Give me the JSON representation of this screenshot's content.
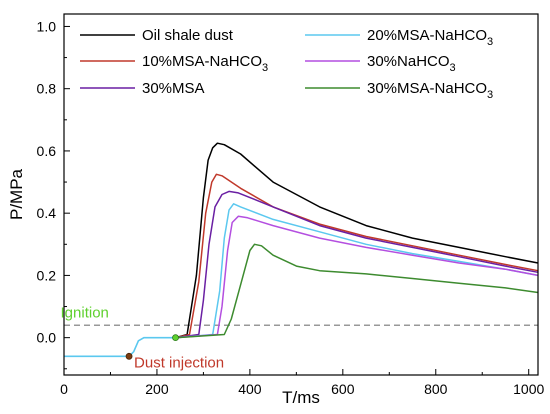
{
  "chart_data": {
    "type": "line",
    "xlabel": "T/ms",
    "ylabel": "P/MPa",
    "xlim": [
      0,
      1020
    ],
    "ylim": [
      -0.12,
      1.04
    ],
    "x_ticks": [
      0,
      200,
      400,
      600,
      800,
      1000
    ],
    "y_ticks": [
      0.0,
      0.2,
      0.4,
      0.6,
      0.8,
      1.0
    ],
    "x_tick_labels": [
      "0",
      "200",
      "400",
      "600",
      "800",
      "1000"
    ],
    "y_tick_labels": [
      "0.0",
      "0.2",
      "0.4",
      "0.6",
      "0.8",
      "1.0"
    ],
    "grid": false,
    "legend_position": "top",
    "series": [
      {
        "name": "Oil shale dust",
        "color": "#000000",
        "points": [
          [
            240,
            0.0
          ],
          [
            265,
            0.01
          ],
          [
            285,
            0.2
          ],
          [
            300,
            0.45
          ],
          [
            310,
            0.57
          ],
          [
            320,
            0.61
          ],
          [
            330,
            0.625
          ],
          [
            345,
            0.62
          ],
          [
            380,
            0.59
          ],
          [
            450,
            0.5
          ],
          [
            550,
            0.42
          ],
          [
            650,
            0.36
          ],
          [
            750,
            0.32
          ],
          [
            850,
            0.29
          ],
          [
            950,
            0.26
          ],
          [
            1020,
            0.24
          ]
        ]
      },
      {
        "name": "10%MSA-NaHCO",
        "sub": "3",
        "color": "#c0392b",
        "points": [
          [
            240,
            0.0
          ],
          [
            270,
            0.01
          ],
          [
            290,
            0.18
          ],
          [
            305,
            0.4
          ],
          [
            318,
            0.5
          ],
          [
            328,
            0.525
          ],
          [
            340,
            0.52
          ],
          [
            380,
            0.48
          ],
          [
            450,
            0.42
          ],
          [
            550,
            0.365
          ],
          [
            650,
            0.325
          ],
          [
            750,
            0.295
          ],
          [
            850,
            0.265
          ],
          [
            950,
            0.235
          ],
          [
            1020,
            0.215
          ]
        ]
      },
      {
        "name": "30%MSA",
        "color": "#6a1fa3",
        "points": [
          [
            240,
            0.0
          ],
          [
            290,
            0.01
          ],
          [
            300,
            0.12
          ],
          [
            312,
            0.3
          ],
          [
            325,
            0.42
          ],
          [
            340,
            0.46
          ],
          [
            355,
            0.47
          ],
          [
            375,
            0.465
          ],
          [
            450,
            0.42
          ],
          [
            550,
            0.36
          ],
          [
            650,
            0.32
          ],
          [
            750,
            0.29
          ],
          [
            850,
            0.26
          ],
          [
            950,
            0.23
          ],
          [
            1020,
            0.21
          ]
        ]
      },
      {
        "name": "20%MSA-NaHCO",
        "sub": "3",
        "color": "#5bc8ef",
        "points": [
          [
            240,
            0.0
          ],
          [
            320,
            0.01
          ],
          [
            335,
            0.15
          ],
          [
            345,
            0.32
          ],
          [
            355,
            0.41
          ],
          [
            365,
            0.43
          ],
          [
            380,
            0.42
          ],
          [
            450,
            0.38
          ],
          [
            550,
            0.34
          ],
          [
            650,
            0.3
          ],
          [
            750,
            0.27
          ],
          [
            850,
            0.245
          ],
          [
            950,
            0.22
          ],
          [
            1020,
            0.2
          ]
        ]
      },
      {
        "name": "30%NaHCO",
        "sub": "3",
        "color": "#b44fe0",
        "points": [
          [
            240,
            0.0
          ],
          [
            330,
            0.01
          ],
          [
            340,
            0.1
          ],
          [
            352,
            0.28
          ],
          [
            362,
            0.37
          ],
          [
            375,
            0.39
          ],
          [
            395,
            0.385
          ],
          [
            450,
            0.36
          ],
          [
            550,
            0.32
          ],
          [
            650,
            0.29
          ],
          [
            750,
            0.265
          ],
          [
            850,
            0.24
          ],
          [
            950,
            0.22
          ],
          [
            1020,
            0.2
          ]
        ]
      },
      {
        "name": "30%MSA-NaHCO",
        "sub": "3",
        "color": "#3d8b2f",
        "points": [
          [
            240,
            0.0
          ],
          [
            345,
            0.01
          ],
          [
            360,
            0.06
          ],
          [
            380,
            0.17
          ],
          [
            400,
            0.28
          ],
          [
            410,
            0.3
          ],
          [
            425,
            0.295
          ],
          [
            450,
            0.265
          ],
          [
            500,
            0.23
          ],
          [
            550,
            0.215
          ],
          [
            650,
            0.205
          ],
          [
            750,
            0.19
          ],
          [
            850,
            0.175
          ],
          [
            950,
            0.16
          ],
          [
            1020,
            0.145
          ]
        ]
      }
    ],
    "baseline_series": {
      "color": "#5bc8ef",
      "points": [
        [
          0,
          -0.06
        ],
        [
          140,
          -0.06
        ],
        [
          150,
          -0.045
        ],
        [
          160,
          -0.01
        ],
        [
          172,
          0.0
        ],
        [
          240,
          0.0
        ]
      ]
    },
    "reference_line": {
      "y": 0.04,
      "style": "dashed",
      "color": "#777777"
    },
    "annotations": [
      {
        "text": "Ignition",
        "color": "#5fd02e",
        "x": 240,
        "y": 0.0
      },
      {
        "text": "Dust injection",
        "color": "#c0392b",
        "x": 140,
        "y": -0.06
      }
    ]
  }
}
